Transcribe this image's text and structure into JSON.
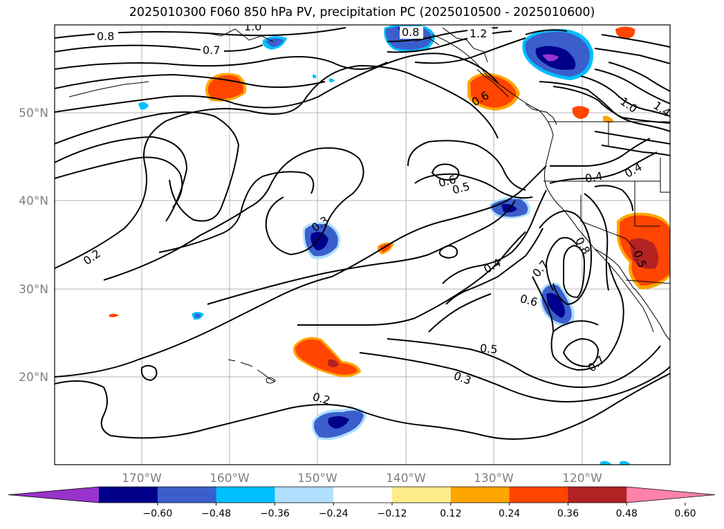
{
  "title": "2025010300 F060 850 hPa PV, precipitation PC (2025010500 - 2025010600)",
  "lat_labels": [
    "50°N",
    "40°N",
    "30°N",
    "20°N"
  ],
  "lon_labels": [
    "170°W",
    "160°W",
    "150°W",
    "140°W",
    "130°W",
    "120°W"
  ],
  "colorbar": {
    "colors": [
      "#9932cc",
      "#00008b",
      "#3a5fcd",
      "#00bfff",
      "#b0e0ff",
      "#ffffff",
      "#ffec8b",
      "#ffa500",
      "#ff4500",
      "#b22222",
      "#ff82ab"
    ],
    "tick_labels": [
      "−0.60",
      "−0.48",
      "−0.36",
      "−0.24",
      "−0.12",
      "0.12",
      "0.24",
      "0.36",
      "0.48",
      "0.60"
    ]
  },
  "contour_labels": [
    "0.8",
    "0.7",
    "1.0",
    "0.8",
    "1.2",
    "1.0",
    "1.4",
    "0.6",
    "0.6",
    "0.5",
    "0.4",
    "0.4",
    "0.3",
    "0.2",
    "0.4",
    "0.7",
    "0.8",
    "0.6",
    "0.5",
    "0.5",
    "0.3",
    "0.7",
    "0.2"
  ]
}
